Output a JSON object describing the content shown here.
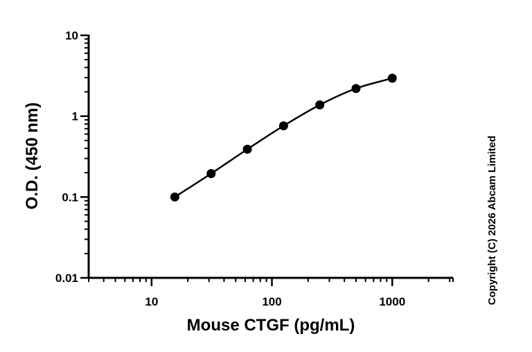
{
  "chart_data": {
    "type": "scatter",
    "xlabel": "Mouse CTGF (pg/mL)",
    "ylabel": "O.D. (450 nm)",
    "x_scale": "log",
    "y_scale": "log",
    "xlim": [
      3,
      3200
    ],
    "ylim": [
      0.01,
      10
    ],
    "x_ticks": [
      10,
      100,
      1000
    ],
    "x_tick_labels": [
      "10",
      "100",
      "1000"
    ],
    "y_ticks": [
      0.01,
      0.1,
      1,
      10
    ],
    "y_tick_labels": [
      "0.01",
      "0.1",
      "1",
      "10"
    ],
    "grid": false,
    "fit_curve": true,
    "series": [
      {
        "x": [
          15.6,
          31.25,
          62.5,
          125,
          250,
          500,
          1000
        ],
        "y": [
          0.1,
          0.195,
          0.39,
          0.76,
          1.38,
          2.2,
          2.95
        ]
      }
    ],
    "colors": {
      "marker": "#000000",
      "line": "#000000"
    }
  },
  "copyright": "Copyright (C) 2026 Abcam Limited"
}
